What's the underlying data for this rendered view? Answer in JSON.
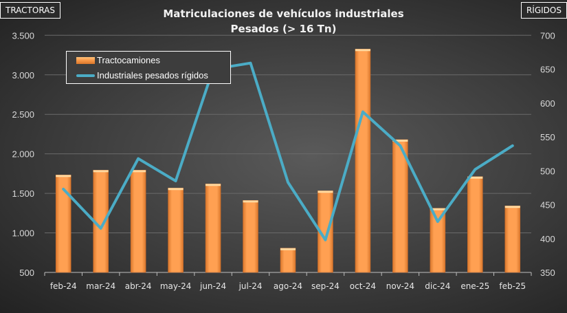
{
  "chart_data": {
    "type": "bar+line",
    "title": "Matriculaciones de vehículos industriales",
    "subtitle": "Pesados (> 16 Tn)",
    "left_axis_label": "TRACTORAS",
    "right_axis_label": "RÍGIDOS",
    "categories": [
      "feb-24",
      "mar-24",
      "abr-24",
      "may-24",
      "jun-24",
      "jul-24",
      "ago-24",
      "sep-24",
      "oct-24",
      "nov-24",
      "dic-24",
      "ene-25",
      "feb-25"
    ],
    "y_left": {
      "min": 500,
      "max": 3500,
      "ticks": [
        "3.500",
        "3.000",
        "2.500",
        "2.000",
        "1.500",
        "1.000",
        "500"
      ]
    },
    "y_right": {
      "min": 350,
      "max": 700,
      "ticks": [
        "700",
        "650",
        "600",
        "550",
        "500",
        "450",
        "400",
        "350"
      ]
    },
    "grid": true,
    "legend_position": "top-left",
    "series": [
      {
        "name": "Tractocamiones",
        "type": "bar",
        "axis": "left",
        "color": "#F79646",
        "values": [
          1733,
          1794,
          1794,
          1568,
          1620,
          1411,
          807,
          1533,
          3326,
          2180,
          1312,
          1712,
          1342
        ]
      },
      {
        "name": "Industriales pesados rígidos",
        "type": "line",
        "axis": "right",
        "color": "#4BACC6",
        "values": [
          473,
          415,
          518,
          485,
          650,
          659,
          483,
          398,
          587,
          537,
          425,
          502,
          537
        ]
      }
    ]
  }
}
